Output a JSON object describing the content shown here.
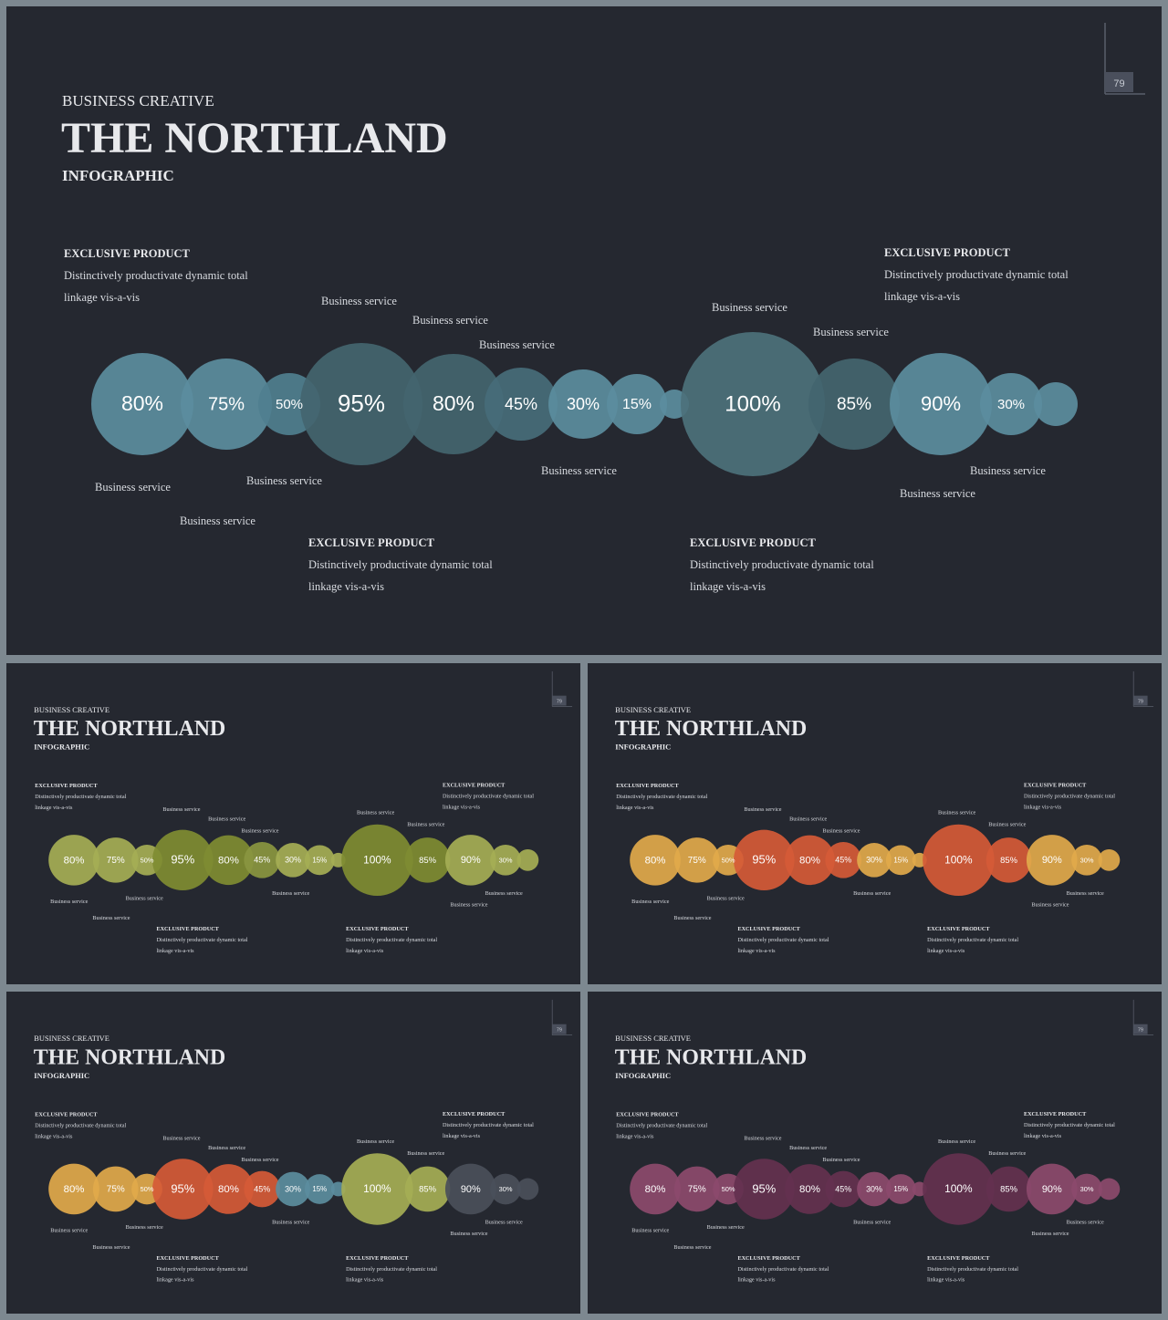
{
  "header": {
    "kicker": "BUSINESS CREATIVE",
    "title": "THE NORTHLAND",
    "subtitle": "INFOGRAPHIC",
    "page_number": "79"
  },
  "products": [
    {
      "title": "EXCLUSIVE PRODUCT",
      "line1": "Distinctively productivate dynamic total",
      "line2": "linkage vis-a-vis"
    },
    {
      "title": "EXCLUSIVE PRODUCT",
      "line1": "Distinctively productivate dynamic total",
      "line2": "linkage vis-a-vis"
    },
    {
      "title": "EXCLUSIVE PRODUCT",
      "line1": "Distinctively productivate dynamic total",
      "line2": "linkage vis-a-vis"
    },
    {
      "title": "EXCLUSIVE PRODUCT",
      "line1": "Distinctively productivate dynamic total",
      "line2": "linkage vis-a-vis"
    }
  ],
  "service_label": "Business service",
  "bubbles": [
    {
      "value": "80%",
      "magnitude": 80
    },
    {
      "value": "75%",
      "magnitude": 75
    },
    {
      "value": "50%",
      "magnitude": 50
    },
    {
      "value": "95%",
      "magnitude": 95
    },
    {
      "value": "80%",
      "magnitude": 80
    },
    {
      "value": "45%",
      "magnitude": 45
    },
    {
      "value": "30%",
      "magnitude": 30
    },
    {
      "value": "15%",
      "magnitude": 15
    },
    {
      "value": "",
      "magnitude": 5
    },
    {
      "value": "100%",
      "magnitude": 100
    },
    {
      "value": "85%",
      "magnitude": 85
    },
    {
      "value": "90%",
      "magnitude": 90
    },
    {
      "value": "30%",
      "magnitude": 30
    },
    {
      "value": "",
      "magnitude": 10
    }
  ],
  "palettes": [
    {
      "name": "blue",
      "colors": [
        "#5b8d9e",
        "#5b8d9e",
        "#4f7f8f",
        "#43656f",
        "#43656f",
        "#476d79",
        "#5b8d9e",
        "#5b8d9e",
        "#5b8d9e",
        "#4c717b",
        "#43656f",
        "#5b8d9e",
        "#5b8d9e",
        "#5b8d9e"
      ]
    },
    {
      "name": "olive",
      "colors": [
        "#a5ae55",
        "#a5ae55",
        "#a5ae55",
        "#7f8c32",
        "#7f8c32",
        "#8a9640",
        "#a5ae55",
        "#a5ae55",
        "#a5ae55",
        "#7f8c32",
        "#7f8c32",
        "#a5ae55",
        "#a5ae55",
        "#a5ae55"
      ]
    },
    {
      "name": "orange",
      "colors": [
        "#e1a94b",
        "#e1a94b",
        "#e1a94b",
        "#d55a37",
        "#d55a37",
        "#d55a37",
        "#e1a94b",
        "#e1a94b",
        "#e1a94b",
        "#d55a37",
        "#d55a37",
        "#e1a94b",
        "#e1a94b",
        "#e1a94b"
      ]
    },
    {
      "name": "mixed",
      "colors": [
        "#e1a94b",
        "#e1a94b",
        "#e1a94b",
        "#d55a37",
        "#d55a37",
        "#d55a37",
        "#5b8d9e",
        "#5b8d9e",
        "#5b8d9e",
        "#a5ae55",
        "#a5ae55",
        "#4a4f5a",
        "#4a4f5a",
        "#4a4f5a"
      ]
    },
    {
      "name": "plum",
      "colors": [
        "#8c4a6d",
        "#8c4a6d",
        "#8c4a6d",
        "#64314f",
        "#64314f",
        "#64314f",
        "#8c4a6d",
        "#8c4a6d",
        "#8c4a6d",
        "#64314f",
        "#64314f",
        "#8c4a6d",
        "#8c4a6d",
        "#8c4a6d"
      ]
    }
  ]
}
